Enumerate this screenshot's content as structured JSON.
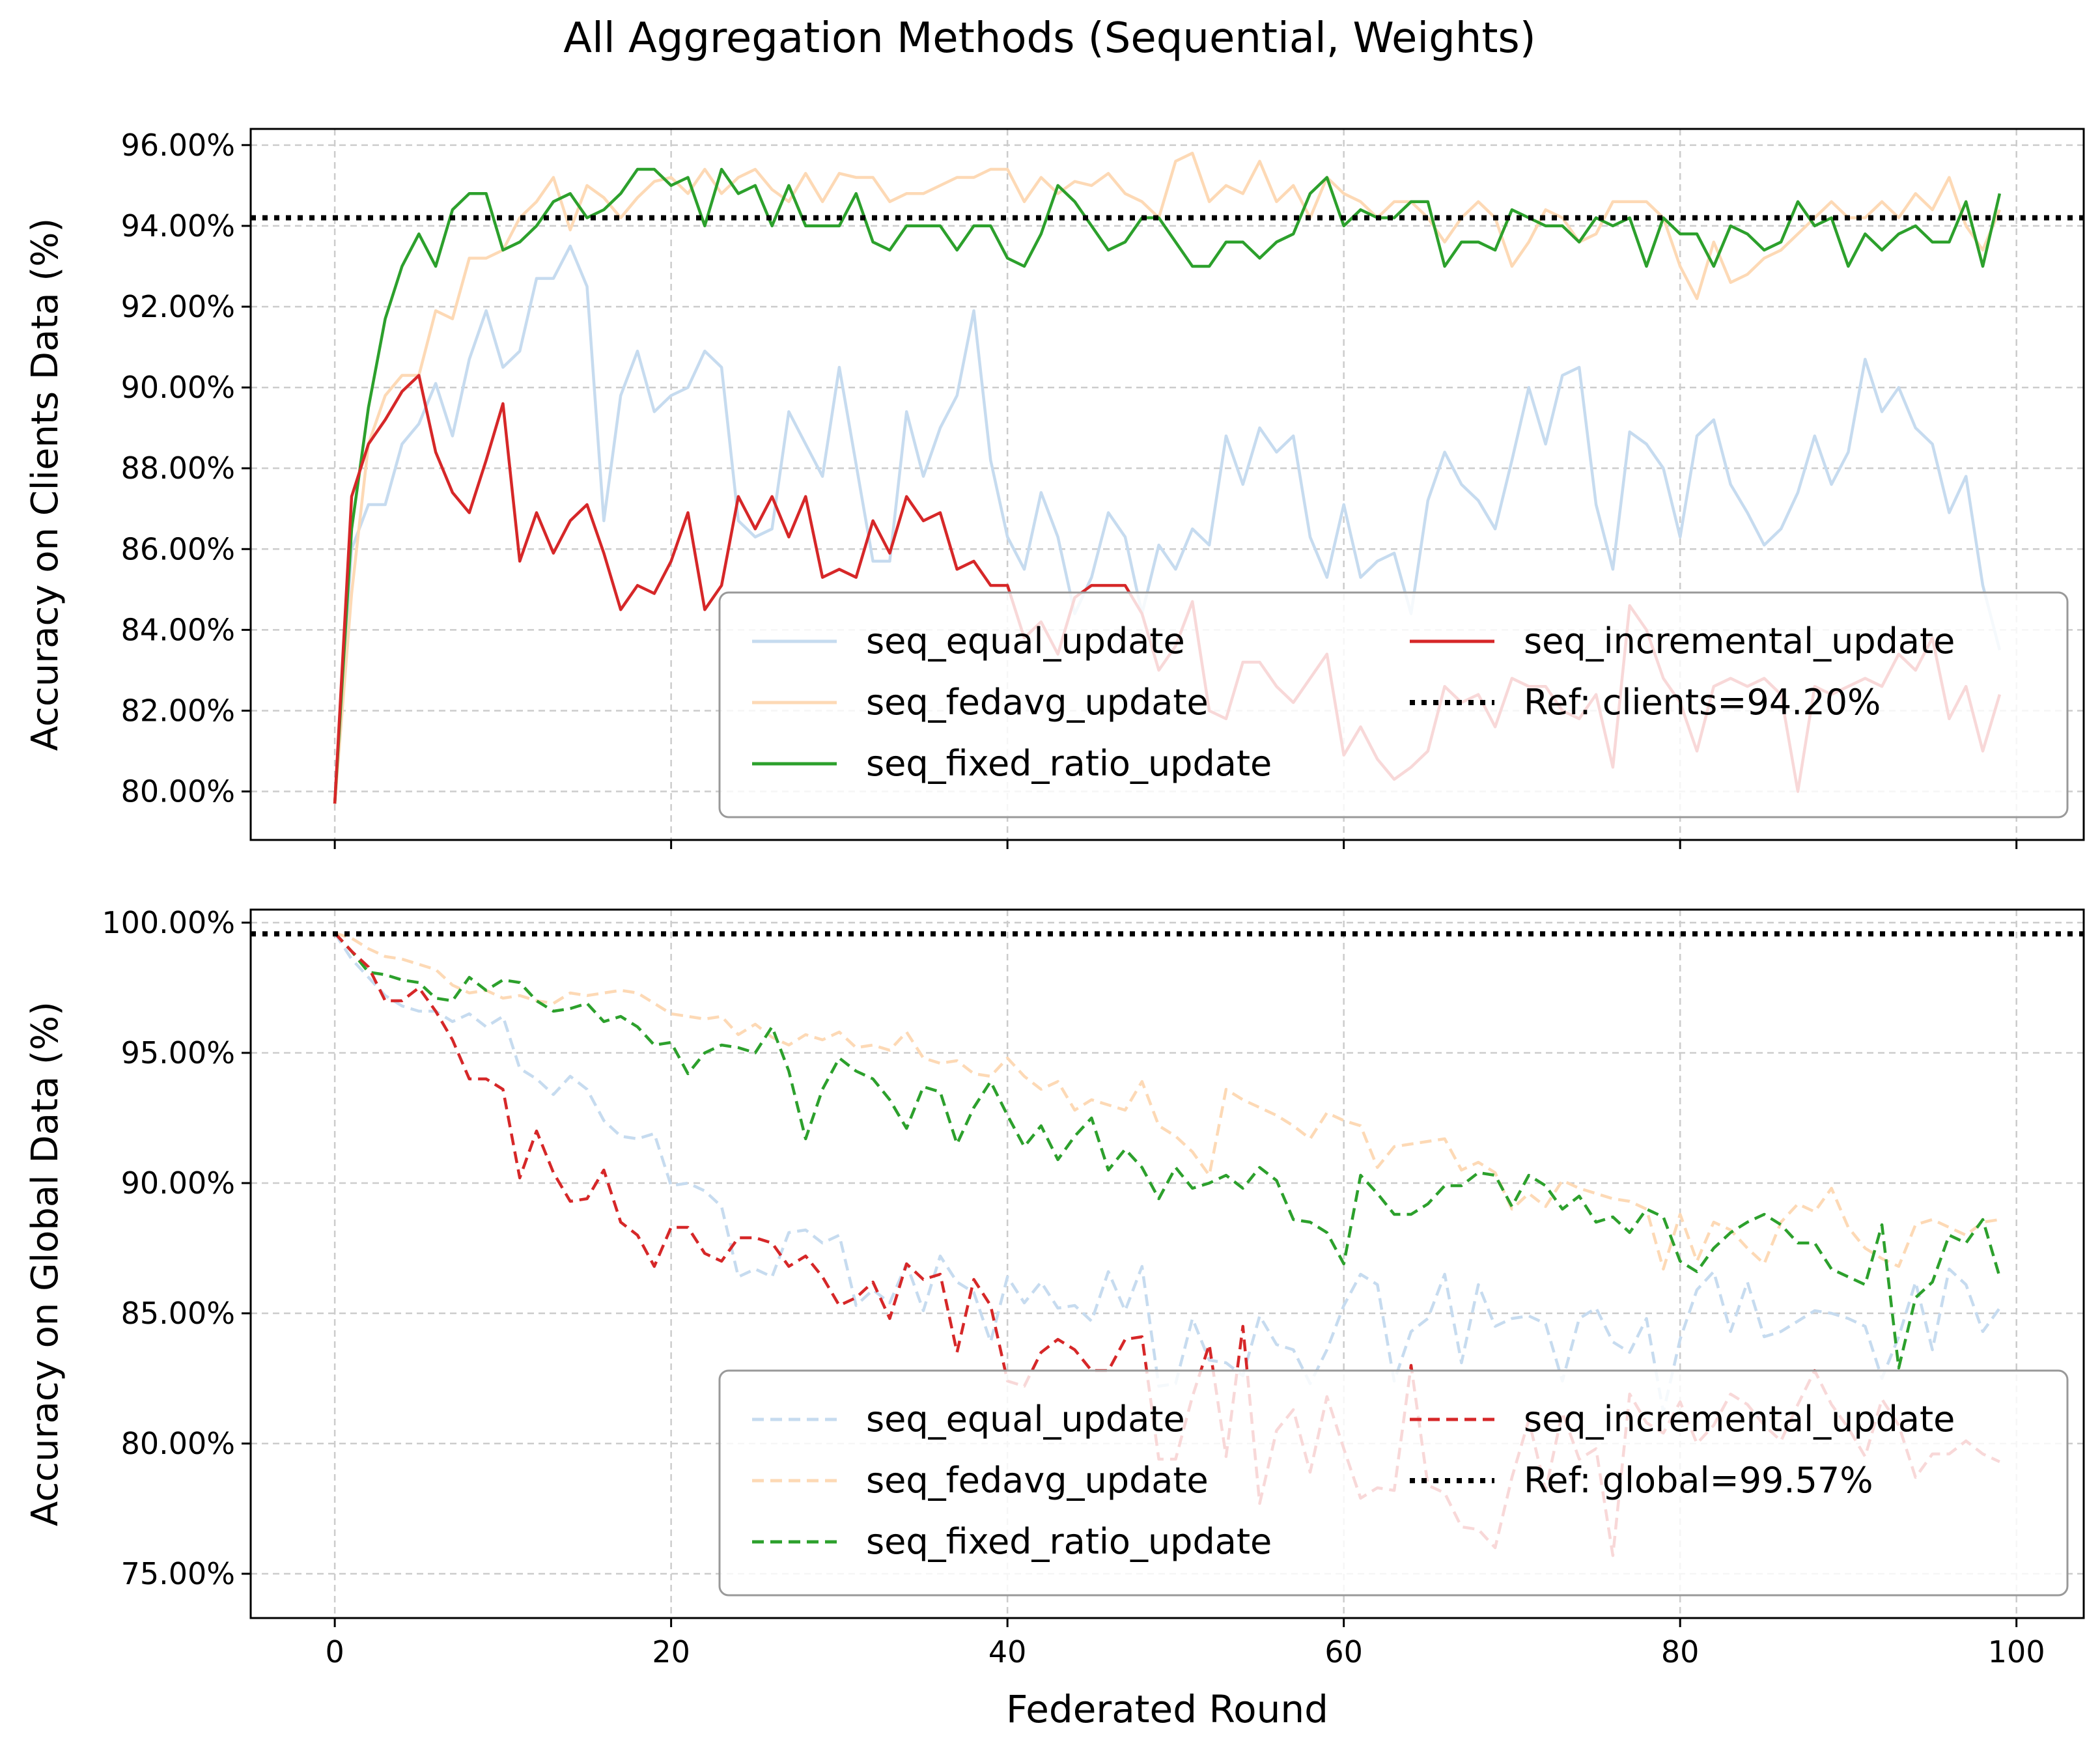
{
  "figure_title": "All Aggregation Methods (Sequential, Weights)",
  "colors": {
    "equal": "#c6dbef",
    "fedavg": "#fdd9b5",
    "fixed": "#2ca02c",
    "incremental": "#d62728",
    "ref": "#000000"
  },
  "chart_data": [
    {
      "type": "line",
      "title": "",
      "xlabel": "",
      "ylabel": "Accuracy on Clients Data (%)",
      "xlim": [
        -5,
        104
      ],
      "ylim": [
        78.8,
        96.4
      ],
      "yticks": [
        80,
        82,
        84,
        86,
        88,
        90,
        92,
        94,
        96
      ],
      "ytick_labels": [
        "80.00%",
        "82.00%",
        "84.00%",
        "86.00%",
        "88.00%",
        "90.00%",
        "92.00%",
        "94.00%",
        "96.00%"
      ],
      "xticks": [
        0,
        20,
        40,
        60,
        80,
        100
      ],
      "grid": true,
      "legend_location": "lower-right",
      "series": [
        {
          "name": "seq_equal_update",
          "color": "#c6dbef",
          "dash": "solid",
          "values": [
            79.7,
            86.0,
            87.1,
            87.1,
            88.6,
            89.1,
            90.1,
            88.8,
            90.7,
            91.9,
            90.5,
            90.9,
            92.7,
            92.7,
            93.5,
            92.5,
            86.7,
            89.8,
            90.9,
            89.4,
            89.8,
            90.0,
            90.9,
            90.5,
            86.7,
            86.3,
            86.5,
            89.4,
            88.6,
            87.8,
            90.5,
            88.1,
            85.7,
            85.7,
            89.4,
            87.8,
            89.0,
            89.8,
            91.9,
            88.2,
            86.3,
            85.5,
            87.4,
            86.3,
            84.4,
            85.3,
            86.9,
            86.3,
            84.4,
            86.1,
            85.5,
            86.5,
            86.1,
            88.8,
            87.6,
            89.0,
            88.4,
            88.8,
            86.3,
            85.3,
            87.1,
            85.3,
            85.7,
            85.9,
            84.4,
            87.2,
            88.4,
            87.6,
            87.2,
            86.5,
            88.2,
            90.0,
            88.6,
            90.3,
            90.5,
            87.1,
            85.5,
            88.9,
            88.6,
            88.0,
            86.3,
            88.8,
            89.2,
            87.6,
            86.9,
            86.1,
            86.5,
            87.4,
            88.8,
            87.6,
            88.4,
            90.7,
            89.4,
            90.0,
            89.0,
            88.6,
            86.9,
            87.8,
            85.1,
            83.5
          ]
        },
        {
          "name": "seq_fedavg_update",
          "color": "#fdd9b5",
          "dash": "solid",
          "values": [
            79.7,
            84.9,
            88.6,
            89.8,
            90.3,
            90.3,
            91.9,
            91.7,
            93.2,
            93.2,
            93.4,
            94.2,
            94.6,
            95.2,
            93.9,
            95.0,
            94.7,
            94.2,
            94.7,
            95.1,
            95.2,
            94.8,
            95.4,
            94.8,
            95.2,
            95.4,
            94.9,
            94.6,
            95.3,
            94.6,
            95.3,
            95.2,
            95.2,
            94.6,
            94.8,
            94.8,
            95.0,
            95.2,
            95.2,
            95.4,
            95.4,
            94.6,
            95.2,
            94.8,
            95.1,
            95.0,
            95.3,
            94.8,
            94.6,
            94.2,
            95.6,
            95.8,
            94.6,
            95.0,
            94.8,
            95.6,
            94.6,
            95.0,
            94.2,
            95.2,
            94.8,
            94.6,
            94.2,
            94.6,
            94.6,
            94.2,
            93.6,
            94.2,
            94.6,
            94.2,
            93.0,
            93.6,
            94.4,
            94.2,
            93.6,
            93.8,
            94.6,
            94.6,
            94.6,
            94.2,
            93.0,
            92.2,
            93.6,
            92.6,
            92.8,
            93.2,
            93.4,
            93.8,
            94.2,
            94.6,
            94.2,
            94.2,
            94.6,
            94.2,
            94.8,
            94.4,
            95.2,
            94.0,
            93.4,
            94.4
          ]
        },
        {
          "name": "seq_fixed_ratio_update",
          "color": "#2ca02c",
          "dash": "solid",
          "values": [
            79.7,
            86.5,
            89.5,
            91.7,
            93.0,
            93.8,
            93.0,
            94.4,
            94.8,
            94.8,
            93.4,
            93.6,
            94.0,
            94.6,
            94.8,
            94.2,
            94.4,
            94.8,
            95.4,
            95.4,
            95.0,
            95.2,
            94.0,
            95.4,
            94.8,
            95.0,
            94.0,
            95.0,
            94.0,
            94.0,
            94.0,
            94.8,
            93.6,
            93.4,
            94.0,
            94.0,
            94.0,
            93.4,
            94.0,
            94.0,
            93.2,
            93.0,
            93.8,
            95.0,
            94.6,
            94.0,
            93.4,
            93.6,
            94.2,
            94.2,
            93.6,
            93.0,
            93.0,
            93.6,
            93.6,
            93.2,
            93.6,
            93.8,
            94.8,
            95.2,
            94.0,
            94.4,
            94.2,
            94.2,
            94.6,
            94.6,
            93.0,
            93.6,
            93.6,
            93.4,
            94.4,
            94.2,
            94.0,
            94.0,
            93.6,
            94.2,
            94.0,
            94.2,
            93.0,
            94.2,
            93.8,
            93.8,
            93.0,
            94.0,
            93.8,
            93.4,
            93.6,
            94.6,
            94.0,
            94.2,
            93.0,
            93.8,
            93.4,
            93.8,
            94.0,
            93.6,
            93.6,
            94.6,
            93.0,
            94.8
          ]
        },
        {
          "name": "seq_incremental_update",
          "color": "#d62728",
          "dash": "solid",
          "values": [
            79.7,
            87.3,
            88.6,
            89.2,
            89.9,
            90.3,
            88.4,
            87.4,
            86.9,
            88.2,
            89.6,
            85.7,
            86.9,
            85.9,
            86.7,
            87.1,
            85.9,
            84.5,
            85.1,
            84.9,
            85.7,
            86.9,
            84.5,
            85.1,
            87.3,
            86.5,
            87.3,
            86.3,
            87.3,
            85.3,
            85.5,
            85.3,
            86.7,
            85.9,
            87.3,
            86.7,
            86.9,
            85.5,
            85.7,
            85.1,
            85.1,
            83.8,
            84.2,
            83.4,
            84.8,
            85.1,
            85.1,
            85.1,
            84.4,
            83.0,
            83.6,
            84.7,
            82.0,
            81.8,
            83.2,
            83.2,
            82.6,
            82.2,
            82.8,
            83.4,
            80.9,
            81.6,
            80.8,
            80.3,
            80.6,
            81.0,
            82.6,
            82.2,
            82.4,
            81.6,
            82.8,
            82.6,
            82.6,
            82.0,
            81.8,
            82.4,
            80.6,
            84.6,
            84.0,
            82.8,
            82.2,
            81.0,
            82.6,
            82.8,
            82.6,
            82.8,
            82.4,
            80.0,
            82.6,
            82.4,
            82.6,
            82.8,
            82.6,
            83.4,
            83.0,
            83.8,
            81.8,
            82.6,
            81.0,
            82.4
          ]
        }
      ],
      "reference": {
        "label": "Ref: clients=94.20%",
        "value": 94.2,
        "color": "#000000"
      }
    },
    {
      "type": "line",
      "title": "",
      "xlabel": "Federated Round",
      "ylabel": "Accuracy on Global Data (%)",
      "xlim": [
        -5,
        104
      ],
      "ylim": [
        73.3,
        100.5
      ],
      "yticks": [
        75,
        80,
        85,
        90,
        95,
        100
      ],
      "ytick_labels": [
        "75.00%",
        "80.00%",
        "85.00%",
        "90.00%",
        "95.00%",
        "100.00%"
      ],
      "xticks": [
        0,
        20,
        40,
        60,
        80,
        100
      ],
      "xtick_labels": [
        "0",
        "20",
        "40",
        "60",
        "80",
        "100"
      ],
      "grid": true,
      "legend_location": "lower-right",
      "series": [
        {
          "name": "seq_equal_update",
          "color": "#c6dbef",
          "dash": "dashed",
          "values": [
            99.6,
            98.6,
            97.9,
            97.2,
            96.8,
            96.6,
            96.6,
            96.2,
            96.5,
            96.0,
            96.4,
            94.4,
            94.0,
            93.4,
            94.1,
            93.6,
            92.4,
            91.8,
            91.7,
            91.9,
            89.9,
            90.0,
            89.7,
            89.1,
            86.4,
            86.7,
            86.4,
            88.1,
            88.2,
            87.7,
            88.0,
            85.3,
            85.9,
            85.4,
            86.9,
            85.1,
            87.2,
            86.2,
            85.8,
            83.9,
            86.4,
            85.4,
            86.2,
            85.2,
            85.3,
            84.7,
            86.6,
            85.1,
            86.8,
            82.2,
            82.3,
            84.8,
            83.2,
            83.1,
            82.6,
            84.9,
            83.8,
            83.6,
            82.3,
            83.6,
            85.3,
            86.5,
            86.1,
            82.4,
            84.3,
            84.8,
            86.5,
            83.1,
            86.1,
            84.5,
            84.8,
            84.9,
            84.6,
            82.4,
            84.8,
            85.2,
            83.9,
            83.5,
            84.8,
            81.2,
            84.0,
            85.9,
            86.6,
            84.3,
            86.2,
            84.1,
            84.3,
            84.7,
            85.1,
            85.0,
            84.8,
            84.5,
            82.5,
            84.1,
            86.2,
            83.6,
            86.7,
            86.1,
            84.3,
            85.2
          ]
        },
        {
          "name": "seq_fedavg_update",
          "color": "#fdd9b5",
          "dash": "dashed",
          "values": [
            99.6,
            99.4,
            99.0,
            98.7,
            98.6,
            98.4,
            98.2,
            97.6,
            97.3,
            97.4,
            97.1,
            97.2,
            97.0,
            96.9,
            97.3,
            97.2,
            97.3,
            97.4,
            97.3,
            96.9,
            96.5,
            96.4,
            96.3,
            96.4,
            95.7,
            96.1,
            95.6,
            95.3,
            95.7,
            95.5,
            95.8,
            95.2,
            95.3,
            95.1,
            95.8,
            94.8,
            94.6,
            94.7,
            94.2,
            94.1,
            94.8,
            94.1,
            93.6,
            93.9,
            92.8,
            93.2,
            93.0,
            92.8,
            93.9,
            92.2,
            91.8,
            91.2,
            90.3,
            93.6,
            93.2,
            92.9,
            92.6,
            92.2,
            91.7,
            92.7,
            92.4,
            92.2,
            90.6,
            91.4,
            91.5,
            91.6,
            91.7,
            90.5,
            90.8,
            90.4,
            89.0,
            89.6,
            89.1,
            90.1,
            89.8,
            89.6,
            89.4,
            89.3,
            89.0,
            86.7,
            88.8,
            87.0,
            88.5,
            88.2,
            87.5,
            86.9,
            88.5,
            89.2,
            88.9,
            89.8,
            88.3,
            87.5,
            87.1,
            86.8,
            88.4,
            88.6,
            88.3,
            88.0,
            88.5,
            88.6
          ]
        },
        {
          "name": "seq_fixed_ratio_update",
          "color": "#2ca02c",
          "dash": "dashed",
          "values": [
            99.6,
            98.9,
            98.1,
            98.0,
            97.8,
            97.7,
            97.1,
            97.0,
            97.9,
            97.4,
            97.8,
            97.7,
            97.0,
            96.6,
            96.7,
            96.9,
            96.2,
            96.4,
            96.0,
            95.3,
            95.4,
            94.2,
            95.0,
            95.3,
            95.2,
            95.0,
            96.0,
            94.3,
            91.7,
            93.6,
            94.8,
            94.3,
            94.0,
            93.2,
            92.1,
            93.7,
            93.5,
            91.5,
            92.9,
            93.9,
            92.6,
            91.4,
            92.2,
            90.9,
            91.8,
            92.5,
            90.5,
            91.3,
            90.6,
            89.4,
            90.6,
            89.8,
            90.0,
            90.3,
            89.8,
            90.6,
            90.1,
            88.6,
            88.5,
            88.1,
            86.9,
            90.3,
            89.6,
            88.8,
            88.8,
            89.2,
            89.9,
            89.9,
            90.4,
            90.3,
            89.1,
            90.3,
            89.9,
            89.0,
            89.5,
            88.5,
            88.7,
            88.1,
            89.0,
            88.7,
            87.0,
            86.6,
            87.5,
            88.1,
            88.5,
            88.8,
            88.4,
            87.7,
            87.7,
            86.7,
            86.4,
            86.1,
            88.4,
            82.9,
            85.6,
            86.2,
            88.0,
            87.7,
            88.6,
            86.4
          ]
        },
        {
          "name": "seq_incremental_update",
          "color": "#d62728",
          "dash": "dashed",
          "values": [
            99.6,
            98.9,
            98.3,
            97.0,
            97.0,
            97.5,
            96.6,
            95.5,
            94.0,
            94.0,
            93.6,
            90.2,
            92.0,
            90.4,
            89.3,
            89.4,
            90.5,
            88.5,
            88.0,
            86.8,
            88.3,
            88.3,
            87.3,
            87.0,
            87.9,
            87.9,
            87.7,
            86.8,
            87.2,
            86.4,
            85.3,
            85.6,
            86.2,
            84.8,
            86.9,
            86.3,
            86.5,
            83.5,
            86.3,
            85.3,
            82.4,
            82.2,
            83.5,
            84.0,
            83.6,
            82.8,
            82.8,
            84.0,
            84.1,
            79.4,
            79.4,
            81.8,
            83.8,
            79.5,
            84.5,
            77.7,
            80.5,
            81.3,
            78.9,
            81.8,
            79.8,
            77.9,
            78.3,
            78.2,
            83.0,
            78.4,
            78.1,
            76.8,
            76.7,
            76.0,
            78.7,
            80.9,
            78.2,
            81.2,
            79.4,
            79.8,
            75.7,
            81.9,
            80.8,
            80.4,
            81.6,
            80.0,
            80.7,
            81.9,
            81.5,
            80.7,
            80.1,
            81.5,
            82.8,
            81.5,
            80.6,
            79.5,
            81.7,
            80.7,
            78.7,
            79.6,
            79.6,
            80.1,
            79.6,
            79.3
          ]
        }
      ],
      "reference": {
        "label": "Ref: global=99.57%",
        "value": 99.57,
        "color": "#000000"
      }
    }
  ]
}
